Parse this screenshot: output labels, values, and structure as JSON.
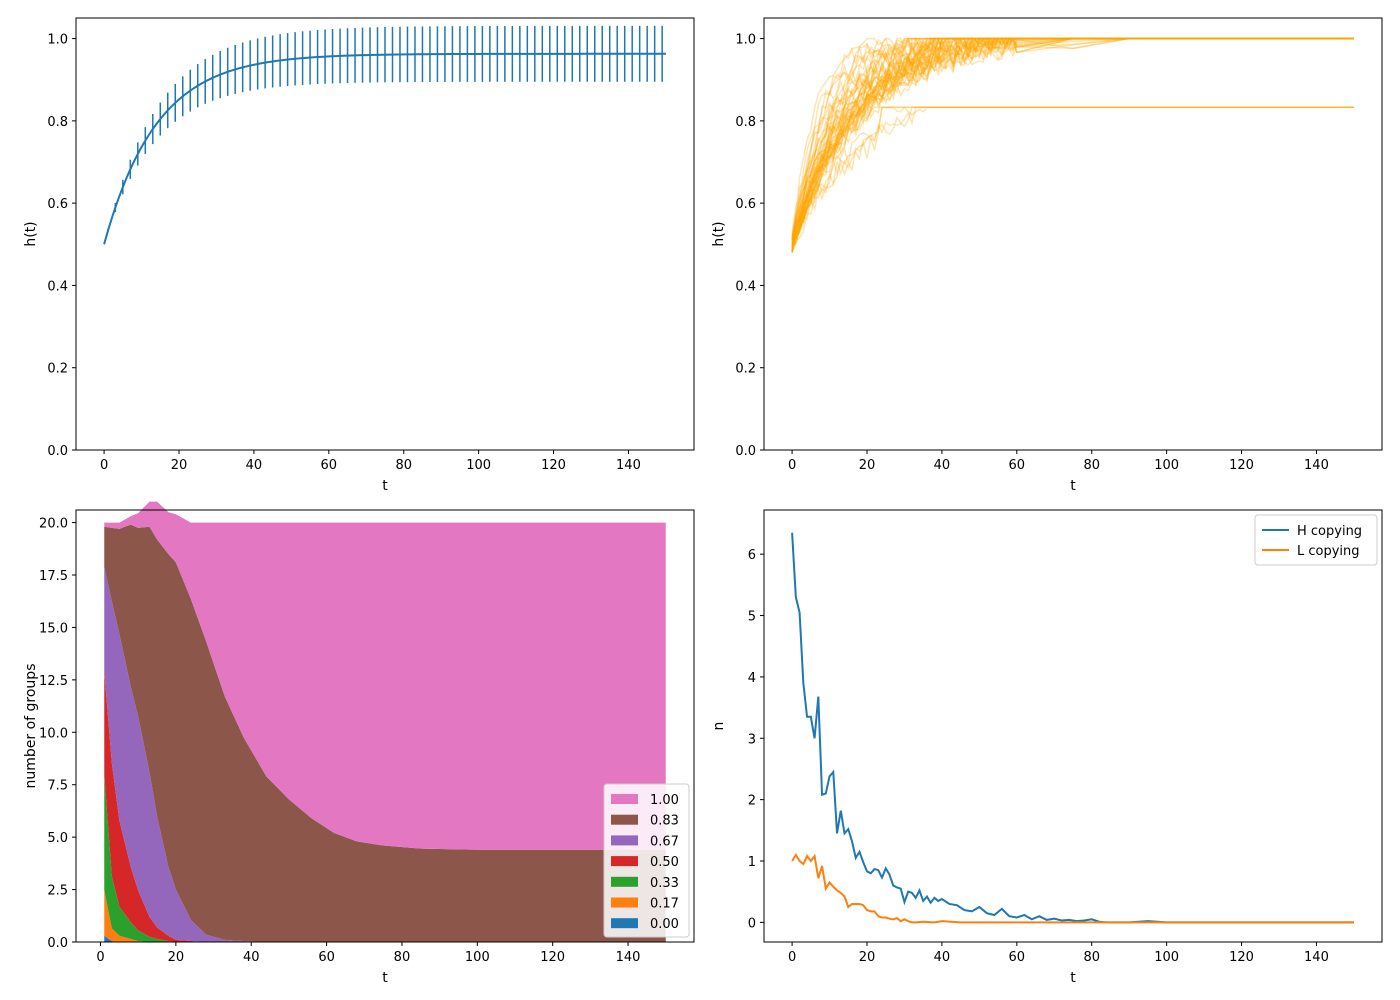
{
  "chart_data": [
    {
      "type": "line",
      "xlabel": "t",
      "ylabel": "h(t)",
      "xlim": [
        -7.5,
        157.5
      ],
      "ylim": [
        0,
        1.05
      ],
      "xticks": [
        "0",
        "20",
        "40",
        "60",
        "80",
        "100",
        "120",
        "140"
      ],
      "yticks": [
        "0.0",
        "0.2",
        "0.4",
        "0.6",
        "0.8",
        "1.0"
      ],
      "series": [
        {
          "color": "#1f77b4",
          "errorbars": true,
          "t_max": 150,
          "mean_start": 0.5,
          "mean_end": 0.963,
          "time_constant": 14,
          "error_halfwidth_end": 0.068,
          "error_sample_step": 2
        }
      ]
    },
    {
      "type": "line",
      "xlabel": "t",
      "ylabel": "h(t)",
      "xlim": [
        -7.5,
        157.5
      ],
      "ylim": [
        0,
        1.05
      ],
      "xticks": [
        "0",
        "20",
        "40",
        "60",
        "80",
        "100",
        "120",
        "140"
      ],
      "yticks": [
        "0.0",
        "0.2",
        "0.4",
        "0.6",
        "0.8",
        "1.0"
      ],
      "color": "#ffa500",
      "trajectories": {
        "count": 50,
        "start": 0.5,
        "levels": [
          1.0,
          0.833
        ],
        "share_at_0_833": 0.1,
        "t_max": 150
      }
    },
    {
      "type": "area",
      "xlabel": "t",
      "ylabel": "number of groups",
      "xlim": [
        -6.5,
        157.5
      ],
      "ylim": [
        0,
        20.6
      ],
      "xticks": [
        "0",
        "20",
        "40",
        "60",
        "80",
        "100",
        "120",
        "140"
      ],
      "yticks": [
        "0.0",
        "2.5",
        "5.0",
        "7.5",
        "10.0",
        "12.5",
        "15.0",
        "17.5",
        "20.0"
      ],
      "x": [
        1,
        3,
        5,
        8,
        10,
        13,
        15,
        18,
        20,
        24,
        28,
        33,
        38,
        44,
        50,
        56,
        62,
        68,
        75,
        85,
        100,
        150
      ],
      "series": [
        {
          "name": "0.00",
          "color": "#1f77b4",
          "values": [
            0.3,
            0.05,
            0,
            0,
            0,
            0,
            0,
            0,
            0,
            0,
            0,
            0,
            0,
            0,
            0,
            0,
            0,
            0,
            0,
            0,
            0,
            0
          ]
        },
        {
          "name": "0.17",
          "color": "#ff7f0e",
          "values": [
            2.2,
            0.6,
            0.3,
            0.15,
            0.05,
            0,
            0,
            0,
            0,
            0,
            0,
            0,
            0,
            0,
            0,
            0,
            0,
            0,
            0,
            0,
            0,
            0
          ]
        },
        {
          "name": "0.33",
          "color": "#2ca02c",
          "values": [
            5.5,
            2.5,
            1.4,
            0.8,
            0.5,
            0.25,
            0.15,
            0.05,
            0,
            0,
            0,
            0,
            0,
            0,
            0,
            0,
            0,
            0,
            0,
            0,
            0,
            0
          ]
        },
        {
          "name": "0.50",
          "color": "#d62728",
          "values": [
            4.9,
            5.4,
            4.1,
            2.65,
            1.9,
            0.95,
            0.55,
            0.25,
            0.1,
            0.05,
            0,
            0,
            0,
            0,
            0,
            0,
            0,
            0,
            0,
            0,
            0,
            0
          ]
        },
        {
          "name": "0.67",
          "color": "#9467bd",
          "values": [
            5.0,
            7.7,
            8.9,
            8.6,
            8.3,
            6.9,
            5.3,
            3.3,
            2.4,
            1.0,
            0.35,
            0.1,
            0.05,
            0,
            0,
            0,
            0,
            0,
            0,
            0,
            0,
            0
          ]
        },
        {
          "name": "0.83",
          "color": "#8c564b",
          "values": [
            1.9,
            3.5,
            5.0,
            7.7,
            9.0,
            11.7,
            13.2,
            14.9,
            15.6,
            15.3,
            14.0,
            11.6,
            9.7,
            7.9,
            6.8,
            5.9,
            5.2,
            4.8,
            4.6,
            4.45,
            4.4,
            4.4
          ]
        },
        {
          "name": "1.00",
          "color": "#e377c2",
          "values": [
            0.2,
            0.25,
            0.3,
            0.4,
            0.7,
            1.2,
            1.8,
            2.0,
            2.3,
            3.65,
            5.65,
            8.3,
            10.25,
            12.1,
            13.2,
            14.1,
            14.8,
            15.2,
            15.4,
            15.55,
            15.6,
            15.6
          ]
        }
      ],
      "legend": {
        "position": "lower right",
        "order": [
          "1.00",
          "0.83",
          "0.67",
          "0.50",
          "0.33",
          "0.17",
          "0.00"
        ]
      }
    },
    {
      "type": "line",
      "xlabel": "t",
      "ylabel": "n",
      "xlim": [
        -7.5,
        157.5
      ],
      "ylim": [
        -0.32,
        6.72
      ],
      "xticks": [
        "0",
        "20",
        "40",
        "60",
        "80",
        "100",
        "120",
        "140"
      ],
      "yticks": [
        "0",
        "1",
        "2",
        "3",
        "4",
        "5",
        "6"
      ],
      "legend": {
        "position": "upper right"
      },
      "series": [
        {
          "name": "H copying",
          "color": "#1f77b4",
          "x": [
            0,
            1,
            2,
            3,
            4,
            5,
            6,
            7,
            8,
            9,
            10,
            11,
            12,
            13,
            14,
            15,
            16,
            17,
            18,
            19,
            20,
            21,
            22,
            23,
            24,
            25,
            26,
            27,
            28,
            29,
            30,
            31,
            32,
            33,
            34,
            35,
            36,
            37,
            38,
            39,
            40,
            42,
            44,
            46,
            48,
            50,
            52,
            54,
            56,
            58,
            60,
            62,
            64,
            66,
            68,
            70,
            72,
            74,
            76,
            78,
            80,
            82,
            84,
            86,
            88,
            90,
            95,
            100,
            150
          ],
          "values": [
            6.35,
            5.3,
            5.05,
            3.9,
            3.35,
            3.35,
            3.0,
            3.68,
            2.08,
            2.1,
            2.38,
            2.45,
            1.45,
            1.82,
            1.45,
            1.52,
            1.32,
            1.05,
            1.15,
            0.98,
            0.83,
            0.8,
            0.87,
            0.85,
            0.73,
            0.88,
            0.78,
            0.6,
            0.57,
            0.55,
            0.33,
            0.5,
            0.48,
            0.4,
            0.52,
            0.35,
            0.42,
            0.32,
            0.4,
            0.35,
            0.38,
            0.3,
            0.28,
            0.2,
            0.18,
            0.25,
            0.15,
            0.12,
            0.22,
            0.1,
            0.08,
            0.12,
            0.05,
            0.1,
            0.04,
            0.06,
            0.03,
            0.04,
            0.02,
            0.03,
            0.05,
            0.01,
            0.0,
            0.0,
            0.0,
            0.0,
            0.02,
            0.0,
            0.0
          ]
        },
        {
          "name": "L copying",
          "color": "#ff7f0e",
          "x": [
            0,
            1,
            2,
            3,
            4,
            5,
            6,
            7,
            8,
            9,
            10,
            11,
            12,
            13,
            14,
            15,
            16,
            17,
            18,
            19,
            20,
            21,
            22,
            23,
            24,
            25,
            26,
            27,
            28,
            29,
            30,
            31,
            32,
            33,
            35,
            38,
            40,
            45,
            50,
            150
          ],
          "values": [
            1.0,
            1.1,
            1.0,
            0.95,
            1.08,
            1.0,
            1.08,
            0.72,
            0.92,
            0.55,
            0.65,
            0.58,
            0.52,
            0.48,
            0.42,
            0.25,
            0.3,
            0.3,
            0.3,
            0.28,
            0.2,
            0.18,
            0.18,
            0.1,
            0.08,
            0.08,
            0.06,
            0.05,
            0.07,
            0.02,
            0.05,
            0.02,
            0.0,
            0.0,
            0.01,
            0.0,
            0.02,
            0.0,
            0.0,
            0.0
          ]
        }
      ]
    }
  ]
}
